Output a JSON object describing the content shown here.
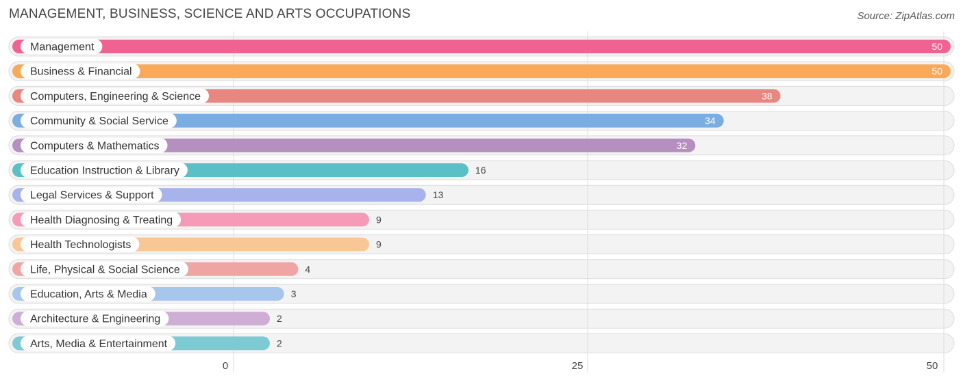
{
  "header": {
    "title": "MANAGEMENT, BUSINESS, SCIENCE AND ARTS OCCUPATIONS",
    "source": "Source: ZipAtlas.com"
  },
  "chart_data": {
    "type": "bar",
    "orientation": "horizontal",
    "title": "MANAGEMENT, BUSINESS, SCIENCE AND ARTS OCCUPATIONS",
    "xlabel": "",
    "ylabel": "",
    "xlim": [
      0,
      50
    ],
    "ticks": [
      0,
      25,
      50
    ],
    "tick_labels": [
      "0",
      "25",
      "50"
    ],
    "grid": true,
    "categories": [
      "Management",
      "Business & Financial",
      "Computers, Engineering & Science",
      "Community & Social Service",
      "Computers & Mathematics",
      "Education Instruction & Library",
      "Legal Services & Support",
      "Health Diagnosing & Treating",
      "Health Technologists",
      "Life, Physical & Social Science",
      "Education, Arts & Media",
      "Architecture & Engineering",
      "Arts, Media & Entertainment"
    ],
    "values": [
      50,
      50,
      38,
      34,
      32,
      16,
      13,
      9,
      9,
      4,
      3,
      2,
      2
    ],
    "colors": [
      "#f06292",
      "#f8a95a",
      "#e8877f",
      "#7aaee2",
      "#b48fc0",
      "#5bbfc6",
      "#a7b3ea",
      "#f59ab7",
      "#f9c795",
      "#f0a5a5",
      "#a7c6ec",
      "#cfaed6",
      "#7ecad3"
    ]
  }
}
